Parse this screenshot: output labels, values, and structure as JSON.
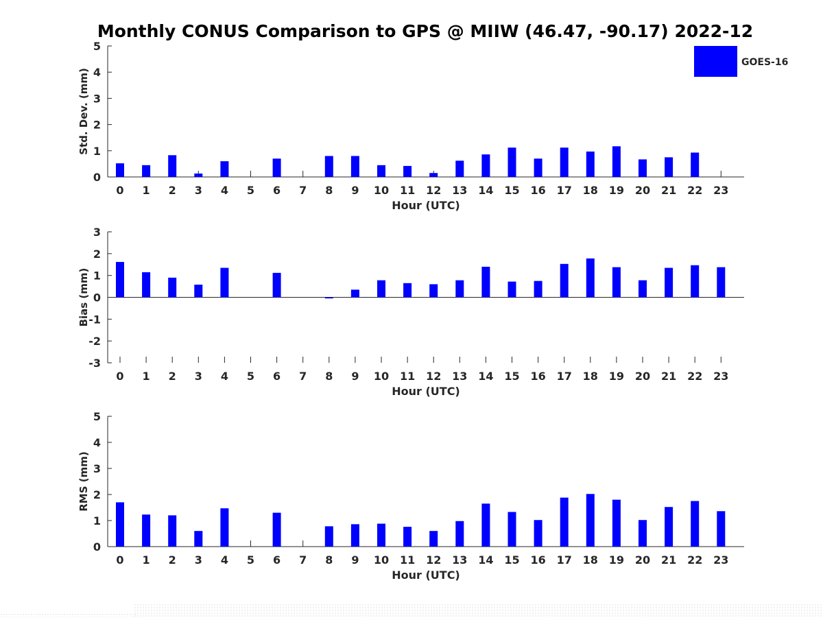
{
  "title": "Monthly CONUS Comparison to GPS @ MIIW (46.47, -90.17) 2022-12",
  "legend": {
    "label": "GOES-16",
    "color": "#0000ff",
    "placement": "top-right"
  },
  "chart_data": [
    {
      "type": "bar",
      "ylabel": "Std. Dev. (mm)",
      "xlabel": "Hour (UTC)",
      "ylim": [
        0,
        5
      ],
      "yticks": [
        "0",
        "1",
        "2",
        "3",
        "4",
        "5"
      ],
      "categories": [
        "0",
        "1",
        "2",
        "3",
        "4",
        "5",
        "6",
        "7",
        "8",
        "9",
        "10",
        "11",
        "12",
        "13",
        "14",
        "15",
        "16",
        "17",
        "18",
        "19",
        "20",
        "21",
        "22",
        "23"
      ],
      "series": [
        {
          "name": "GOES-16",
          "values": [
            0.52,
            0.45,
            0.83,
            0.13,
            0.6,
            null,
            0.7,
            null,
            0.8,
            0.8,
            0.45,
            0.42,
            0.15,
            0.62,
            0.86,
            1.12,
            0.7,
            1.12,
            0.97,
            1.17,
            0.67,
            0.75,
            0.93,
            null
          ]
        }
      ]
    },
    {
      "type": "bar",
      "ylabel": "Bias (mm)",
      "xlabel": "Hour (UTC)",
      "ylim": [
        -3,
        3
      ],
      "yticks": [
        "-3",
        "-2",
        "-1",
        "0",
        "1",
        "2",
        "3"
      ],
      "categories": [
        "0",
        "1",
        "2",
        "3",
        "4",
        "5",
        "6",
        "7",
        "8",
        "9",
        "10",
        "11",
        "12",
        "13",
        "14",
        "15",
        "16",
        "17",
        "18",
        "19",
        "20",
        "21",
        "22",
        "23"
      ],
      "series": [
        {
          "name": "GOES-16",
          "values": [
            1.62,
            1.15,
            0.9,
            0.58,
            1.35,
            null,
            1.12,
            null,
            -0.05,
            0.35,
            0.78,
            0.65,
            0.6,
            0.78,
            1.4,
            0.72,
            0.75,
            1.53,
            1.78,
            1.38,
            0.78,
            1.35,
            1.47,
            1.38
          ]
        }
      ]
    },
    {
      "type": "bar",
      "ylabel": "RMS (mm)",
      "xlabel": "Hour (UTC)",
      "ylim": [
        0,
        5
      ],
      "yticks": [
        "0",
        "1",
        "2",
        "3",
        "4",
        "5"
      ],
      "categories": [
        "0",
        "1",
        "2",
        "3",
        "4",
        "5",
        "6",
        "7",
        "8",
        "9",
        "10",
        "11",
        "12",
        "13",
        "14",
        "15",
        "16",
        "17",
        "18",
        "19",
        "20",
        "21",
        "22",
        "23"
      ],
      "series": [
        {
          "name": "GOES-16",
          "values": [
            1.7,
            1.23,
            1.2,
            0.6,
            1.47,
            null,
            1.3,
            null,
            0.78,
            0.86,
            0.88,
            0.76,
            0.6,
            0.98,
            1.65,
            1.33,
            1.02,
            1.88,
            2.02,
            1.8,
            1.02,
            1.52,
            1.75,
            1.36
          ]
        }
      ]
    }
  ]
}
